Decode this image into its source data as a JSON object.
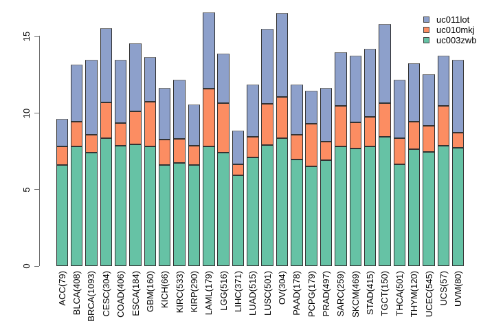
{
  "chart_data": {
    "type": "bar",
    "stacked": true,
    "title": "",
    "xlabel": "",
    "ylabel": "",
    "categories": [
      "ACC(79)",
      "BLCA(408)",
      "BRCA(1093)",
      "CESC(304)",
      "COAD(406)",
      "ESCA(184)",
      "GBM(160)",
      "KICH(66)",
      "KIRC(533)",
      "KIRP(290)",
      "LAML(179)",
      "LGG(516)",
      "LIHC(371)",
      "LUAD(515)",
      "LUSC(501)",
      "OV(304)",
      "PAAD(178)",
      "PCPG(179)",
      "PRAD(497)",
      "SARC(259)",
      "SKCM(469)",
      "STAD(415)",
      "TGCT(150)",
      "THCA(501)",
      "THYM(120)",
      "UCEC(545)",
      "UCS(57)",
      "UVM(80)"
    ],
    "series": [
      {
        "name": "uc011lot",
        "color": "#8DA0CB",
        "values": [
          1.8,
          3.7,
          4.9,
          4.85,
          4.15,
          4.45,
          2.9,
          3.4,
          3.9,
          2.7,
          5.0,
          3.25,
          2.2,
          3.4,
          4.9,
          5.5,
          3.25,
          2.15,
          3.5,
          3.55,
          4.35,
          4.45,
          5.15,
          3.85,
          3.8,
          3.4,
          3.3,
          4.8
        ]
      },
      {
        "name": "uc010mkj",
        "color": "#FC8D62",
        "values": [
          1.2,
          1.65,
          1.2,
          2.35,
          1.5,
          2.15,
          2.95,
          1.65,
          1.55,
          1.25,
          3.8,
          3.25,
          0.7,
          1.35,
          2.7,
          2.7,
          1.65,
          2.8,
          1.25,
          2.65,
          1.7,
          1.95,
          2.2,
          1.7,
          1.8,
          1.7,
          2.6,
          0.95
        ]
      },
      {
        "name": "uc003zwb",
        "color": "#66C2A5",
        "values": [
          6.6,
          7.8,
          7.4,
          8.35,
          7.85,
          7.95,
          7.8,
          6.6,
          6.75,
          6.6,
          7.8,
          7.4,
          5.95,
          7.1,
          7.9,
          8.35,
          6.95,
          6.5,
          6.9,
          7.8,
          7.7,
          7.8,
          8.45,
          6.65,
          7.65,
          7.45,
          7.85,
          7.75
        ]
      }
    ],
    "stack_order_bottom_to_top": [
      "uc003zwb",
      "uc010mkj",
      "uc011lot"
    ],
    "y_axis": {
      "ticks": [
        0,
        5,
        10,
        15
      ],
      "range": [
        0,
        16.8
      ],
      "grid": false
    },
    "legend": {
      "position": "top-right",
      "entries": [
        "uc011lot",
        "uc010mkj",
        "uc003zwb"
      ]
    }
  }
}
